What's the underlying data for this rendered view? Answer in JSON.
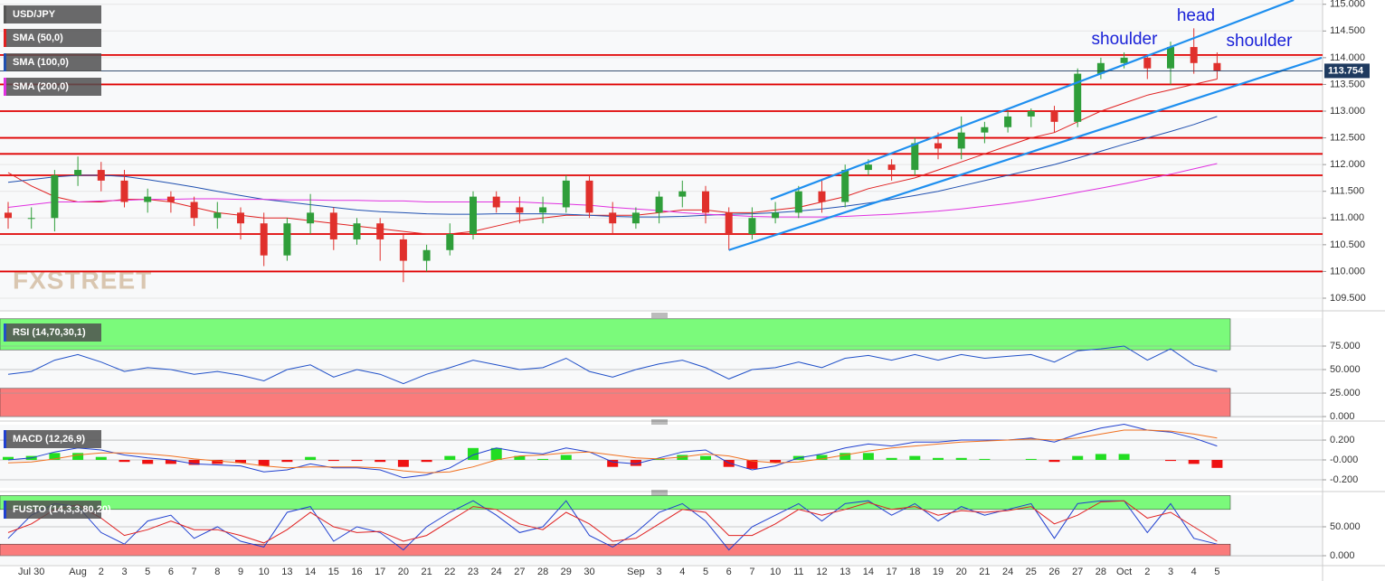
{
  "chart_data": [
    {
      "type": "candlestick",
      "title": "USD/JPY",
      "watermark": "FXSTREET",
      "categories": [
        null,
        "Jul 30",
        null,
        "Aug",
        "2",
        "3",
        "5",
        "6",
        "7",
        "8",
        "9",
        "10",
        "13",
        "14",
        "15",
        "16",
        "17",
        "20",
        "21",
        "22",
        "23",
        "24",
        "27",
        "28",
        "29",
        "30",
        null,
        "Sep",
        "3",
        "4",
        "5",
        "6",
        "7",
        "10",
        "11",
        "12",
        "13",
        "14",
        "17",
        "18",
        "19",
        "20",
        "21",
        "24",
        "25",
        "26",
        "27",
        "28",
        "Oct",
        "2",
        "3",
        "4",
        "5"
      ],
      "open": [
        111.1,
        111.0,
        111.0,
        111.8,
        111.9,
        111.7,
        111.3,
        111.4,
        111.3,
        111.0,
        111.1,
        110.9,
        110.3,
        110.9,
        111.1,
        110.6,
        110.9,
        110.6,
        110.2,
        110.4,
        110.7,
        111.4,
        111.2,
        111.1,
        111.2,
        111.7,
        111.1,
        110.9,
        111.1,
        111.4,
        111.5,
        111.1,
        110.7,
        111.0,
        111.1,
        111.5,
        111.3,
        111.9,
        112.0,
        111.9,
        112.4,
        112.3,
        112.6,
        112.7,
        112.9,
        113.0,
        112.8,
        113.7,
        113.9,
        114.0,
        113.8,
        114.2,
        113.9
      ],
      "high": [
        111.3,
        111.2,
        111.9,
        112.15,
        112.05,
        111.9,
        111.55,
        111.5,
        111.4,
        111.3,
        111.2,
        111.1,
        111.0,
        111.45,
        111.2,
        111.0,
        111.0,
        110.7,
        110.5,
        110.9,
        111.5,
        111.5,
        111.4,
        111.4,
        111.8,
        111.8,
        111.3,
        111.2,
        111.5,
        111.7,
        111.6,
        111.2,
        111.2,
        111.3,
        111.6,
        111.7,
        112.0,
        112.1,
        112.1,
        112.5,
        112.6,
        112.9,
        112.8,
        113.0,
        113.05,
        113.1,
        113.8,
        114.0,
        114.1,
        114.05,
        114.3,
        114.55,
        114.1
      ],
      "low": [
        110.8,
        110.8,
        110.75,
        111.6,
        111.5,
        111.2,
        111.1,
        111.1,
        110.85,
        110.8,
        110.6,
        110.1,
        110.2,
        110.7,
        110.4,
        110.5,
        110.2,
        109.8,
        110.0,
        110.3,
        110.6,
        111.1,
        110.9,
        110.9,
        111.1,
        111.0,
        110.7,
        110.8,
        110.9,
        111.2,
        110.9,
        110.4,
        110.6,
        110.9,
        111.0,
        111.1,
        111.2,
        111.8,
        111.7,
        111.8,
        112.1,
        112.1,
        112.4,
        112.6,
        112.7,
        112.6,
        112.7,
        113.6,
        113.8,
        113.6,
        113.5,
        113.7,
        113.6
      ],
      "close": [
        111.0,
        111.0,
        111.8,
        111.9,
        111.7,
        111.3,
        111.4,
        111.3,
        111.0,
        111.1,
        110.9,
        110.3,
        110.9,
        111.1,
        110.6,
        110.9,
        110.6,
        110.2,
        110.4,
        110.7,
        111.4,
        111.2,
        111.1,
        111.2,
        111.7,
        111.1,
        110.9,
        111.1,
        111.4,
        111.5,
        111.1,
        110.7,
        111.0,
        111.1,
        111.5,
        111.3,
        111.9,
        112.0,
        111.9,
        112.4,
        112.3,
        112.6,
        112.7,
        112.9,
        113.0,
        112.8,
        113.7,
        113.9,
        114.0,
        113.8,
        114.2,
        113.9,
        113.75
      ],
      "up_color": "#2f9e3a",
      "down_color": "#e0302c",
      "series": [
        {
          "name": "SMA (50,0)",
          "color": "#e02020",
          "values": [
            111.85,
            111.6,
            111.4,
            111.3,
            111.3,
            111.35,
            111.35,
            111.3,
            111.2,
            111.1,
            111.05,
            111.0,
            111.0,
            110.95,
            110.9,
            110.85,
            110.8,
            110.75,
            110.7,
            110.7,
            110.75,
            110.85,
            110.95,
            111.0,
            111.05,
            111.05,
            111.05,
            111.05,
            111.1,
            111.15,
            111.15,
            111.1,
            111.1,
            111.15,
            111.2,
            111.3,
            111.4,
            111.55,
            111.65,
            111.75,
            111.9,
            112.05,
            112.2,
            112.35,
            112.5,
            112.6,
            112.8,
            113.0,
            113.15,
            113.3,
            113.4,
            113.5,
            113.6
          ]
        },
        {
          "name": "SMA (100,0)",
          "color": "#2050b0",
          "values": [
            111.67,
            111.72,
            111.77,
            111.8,
            111.8,
            111.78,
            111.72,
            111.65,
            111.58,
            111.5,
            111.42,
            111.35,
            111.3,
            111.25,
            111.2,
            111.15,
            111.12,
            111.1,
            111.08,
            111.07,
            111.07,
            111.08,
            111.08,
            111.08,
            111.07,
            111.05,
            111.03,
            111.02,
            111.02,
            111.03,
            111.05,
            111.07,
            111.08,
            111.1,
            111.13,
            111.17,
            111.22,
            111.28,
            111.35,
            111.42,
            111.5,
            111.6,
            111.7,
            111.8,
            111.9,
            112.0,
            112.12,
            112.25,
            112.38,
            112.5,
            112.62,
            112.75,
            112.9
          ]
        },
        {
          "name": "SMA (200,0)",
          "color": "#e030e0",
          "values": [
            111.2,
            111.25,
            111.3,
            111.3,
            111.32,
            111.33,
            111.35,
            111.35,
            111.36,
            111.36,
            111.35,
            111.35,
            111.34,
            111.34,
            111.33,
            111.33,
            111.32,
            111.32,
            111.3,
            111.3,
            111.3,
            111.3,
            111.3,
            111.28,
            111.26,
            111.24,
            111.2,
            111.17,
            111.14,
            111.1,
            111.07,
            111.05,
            111.03,
            111.02,
            111.02,
            111.02,
            111.03,
            111.05,
            111.07,
            111.1,
            111.13,
            111.17,
            111.22,
            111.27,
            111.33,
            111.4,
            111.48,
            111.56,
            111.64,
            111.73,
            111.82,
            111.92,
            112.02
          ]
        }
      ],
      "levels": [
        110.0,
        110.7,
        111.8,
        112.2,
        112.5,
        113.0,
        113.5,
        114.05
      ],
      "level_color": "#e00000",
      "trendlines": [
        {
          "x": [
            31,
            56.5
          ],
          "y": [
            110.4,
            114.0
          ]
        },
        {
          "x": [
            32.8,
            55.3
          ],
          "y": [
            111.35,
            115.08
          ]
        }
      ],
      "trendline_color": "#1e8fef",
      "annotations": [
        "shoulder",
        "head",
        "shoulder"
      ],
      "last_price": 113.754,
      "ylim": [
        109.28,
        115.08
      ],
      "yticks": [
        {
          "value": 109.5,
          "label": "109.500"
        },
        {
          "value": 110,
          "label": "110.000"
        },
        {
          "value": 110.5,
          "label": "110.500"
        },
        {
          "value": 111,
          "label": "111.000"
        },
        {
          "value": 111.5,
          "label": "111.500"
        },
        {
          "value": 112,
          "label": "112.000"
        },
        {
          "value": 112.5,
          "label": "112.500"
        },
        {
          "value": 113,
          "label": "113.000"
        },
        {
          "value": 113.5,
          "label": "113.500"
        },
        {
          "value": 114,
          "label": "114.000"
        },
        {
          "value": 114.5,
          "label": "114.500"
        },
        {
          "value": 115,
          "label": "115.000"
        }
      ]
    },
    {
      "type": "line",
      "title": "RSI (14,70,30,1)",
      "series": [
        {
          "color": "#2050c8",
          "values": [
            45,
            48,
            60,
            66,
            58,
            48,
            52,
            50,
            45,
            48,
            44,
            38,
            50,
            55,
            42,
            50,
            45,
            35,
            45,
            52,
            60,
            55,
            50,
            52,
            62,
            48,
            42,
            50,
            56,
            60,
            52,
            40,
            50,
            52,
            58,
            52,
            62,
            65,
            60,
            66,
            60,
            66,
            62,
            64,
            66,
            58,
            70,
            72,
            75,
            60,
            72,
            55,
            48
          ]
        }
      ],
      "bands": [
        {
          "from": 71,
          "to": 104,
          "color": "#7bfa7b"
        },
        {
          "from": 0,
          "to": 30,
          "color": "#fa7b7b"
        }
      ],
      "ylim": [
        -1.9,
        104.8
      ],
      "yticks": [
        {
          "value": 0,
          "label": "0.000"
        },
        {
          "value": 25,
          "label": "25.000"
        },
        {
          "value": 50,
          "label": "50.000"
        },
        {
          "value": 75,
          "label": "75.000"
        }
      ]
    },
    {
      "type": "macd",
      "title": "MACD (12,26,9)",
      "series": [
        {
          "color": "#2040d0",
          "values": [
            0.0,
            0.02,
            0.08,
            0.12,
            0.1,
            0.05,
            0.02,
            0.0,
            -0.04,
            -0.05,
            -0.06,
            -0.12,
            -0.1,
            -0.04,
            -0.08,
            -0.08,
            -0.1,
            -0.18,
            -0.15,
            -0.08,
            0.05,
            0.12,
            0.08,
            0.06,
            0.12,
            0.08,
            -0.02,
            -0.04,
            0.02,
            0.08,
            0.1,
            -0.03,
            -0.1,
            -0.06,
            0.02,
            0.06,
            0.12,
            0.16,
            0.14,
            0.18,
            0.18,
            0.2,
            0.2,
            0.2,
            0.22,
            0.18,
            0.26,
            0.32,
            0.36,
            0.3,
            0.28,
            0.22,
            0.14
          ]
        },
        {
          "color": "#f07020",
          "values": [
            -0.03,
            -0.02,
            0.01,
            0.05,
            0.07,
            0.07,
            0.06,
            0.04,
            0.01,
            -0.01,
            -0.03,
            -0.06,
            -0.08,
            -0.07,
            -0.07,
            -0.07,
            -0.08,
            -0.11,
            -0.13,
            -0.12,
            -0.07,
            0.0,
            0.04,
            0.05,
            0.07,
            0.08,
            0.05,
            0.02,
            0.01,
            0.03,
            0.06,
            0.04,
            -0.01,
            -0.03,
            -0.02,
            0.01,
            0.05,
            0.09,
            0.12,
            0.14,
            0.16,
            0.18,
            0.19,
            0.2,
            0.21,
            0.2,
            0.22,
            0.26,
            0.3,
            0.3,
            0.29,
            0.26,
            0.22
          ]
        }
      ],
      "histogram": [
        0.03,
        0.04,
        0.07,
        0.07,
        0.03,
        -0.02,
        -0.04,
        -0.04,
        -0.05,
        -0.04,
        -0.03,
        -0.06,
        -0.02,
        0.03,
        -0.01,
        -0.01,
        -0.02,
        -0.07,
        -0.02,
        0.04,
        0.12,
        0.12,
        0.04,
        0.01,
        0.05,
        0.0,
        -0.07,
        -0.06,
        0.01,
        0.05,
        0.04,
        -0.07,
        -0.09,
        -0.03,
        0.04,
        0.05,
        0.07,
        0.07,
        0.02,
        0.04,
        0.02,
        0.02,
        0.01,
        0.0,
        0.01,
        -0.02,
        0.04,
        0.06,
        0.06,
        0.0,
        -0.01,
        -0.04,
        -0.08
      ],
      "up_color": "#22dd22",
      "down_color": "#ee1111",
      "ylim": [
        -0.282,
        0.355
      ],
      "yticks": [
        {
          "value": -0.2,
          "label": "-0.200"
        },
        {
          "value": 0,
          "label": "-0.000"
        },
        {
          "value": 0.2,
          "label": "0.200"
        }
      ]
    },
    {
      "type": "line",
      "title": "FUSTO (14,3,3,80,20)",
      "series": [
        {
          "color": "#2040d0",
          "values": [
            30,
            70,
            90,
            85,
            40,
            20,
            60,
            70,
            30,
            50,
            25,
            15,
            75,
            85,
            25,
            50,
            40,
            10,
            50,
            75,
            95,
            70,
            40,
            50,
            95,
            35,
            15,
            40,
            75,
            90,
            60,
            10,
            50,
            70,
            90,
            60,
            90,
            95,
            70,
            90,
            60,
            85,
            70,
            80,
            90,
            30,
            90,
            95,
            95,
            40,
            90,
            30,
            20
          ]
        },
        {
          "color": "#e02020",
          "values": [
            40,
            55,
            80,
            88,
            65,
            35,
            45,
            60,
            45,
            45,
            35,
            22,
            45,
            75,
            50,
            40,
            42,
            25,
            35,
            60,
            85,
            80,
            55,
            45,
            75,
            55,
            25,
            30,
            55,
            80,
            75,
            35,
            35,
            55,
            80,
            70,
            80,
            92,
            80,
            85,
            70,
            78,
            75,
            78,
            85,
            55,
            70,
            93,
            95,
            65,
            75,
            50,
            25
          ]
        }
      ],
      "bands": [
        {
          "from": 80,
          "to": 104,
          "color": "#7bfa7b"
        },
        {
          "from": 0,
          "to": 20,
          "color": "#fa7b7b"
        }
      ],
      "ylim": [
        -15.6,
        104.7
      ],
      "yticks": [
        {
          "value": 0,
          "label": "0.000"
        },
        {
          "value": 50,
          "label": "50.000"
        }
      ]
    }
  ]
}
